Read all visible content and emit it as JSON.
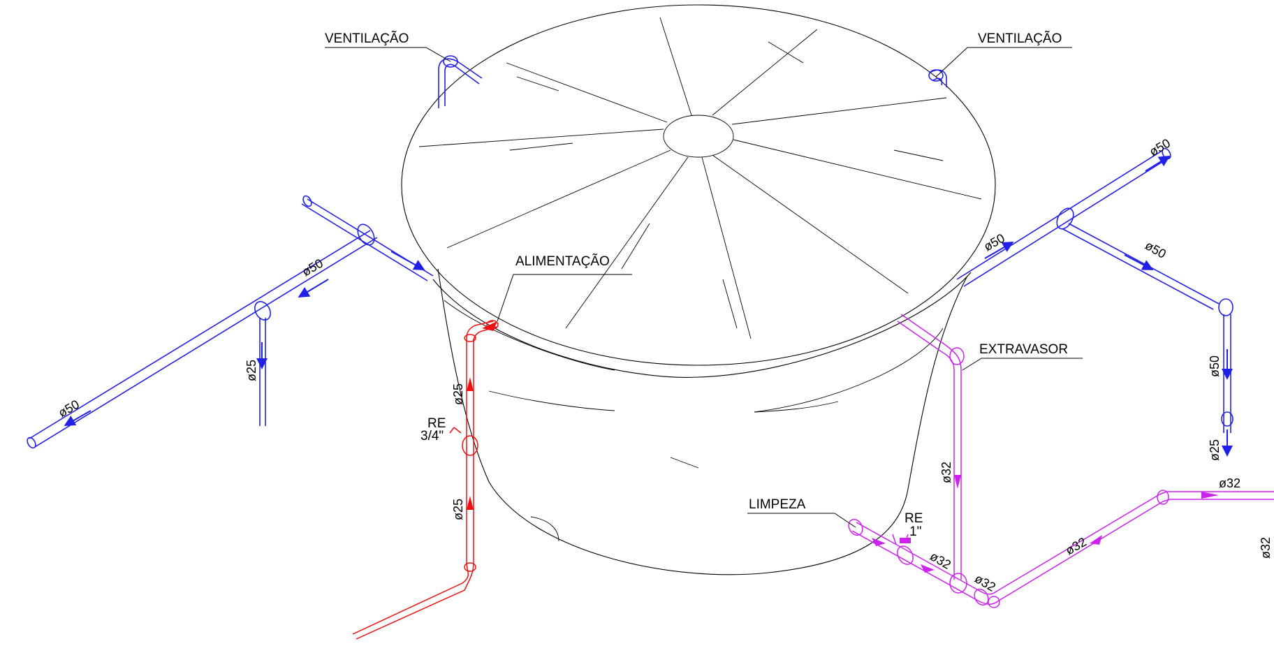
{
  "labels": {
    "ventilacao_left": "VENTILAÇÃO",
    "ventilacao_right": "VENTILAÇÃO",
    "alimentacao": "ALIMENTAÇÃO",
    "extravasor": "EXTRAVASOR",
    "limpeza": "LIMPEZA",
    "re_feed_line1": "RE",
    "re_feed_line2": "3/4\"",
    "re_clean_line1": "RE",
    "re_clean_line2": "1\""
  },
  "dimensions": {
    "left_main_upper": "ø50",
    "left_main_lower": "ø50",
    "left_drop": "ø25",
    "feed_upper": "ø25",
    "feed_lower": "ø25",
    "right_to_tee": "ø50",
    "right_to_end": "ø50",
    "right_branch": "ø50",
    "right_down": "ø50",
    "right_drop": "ø25",
    "overflow_down": "ø32",
    "clean_horizontal_a": "ø32",
    "clean_horizontal_b": "ø32",
    "clean_diagonal": "ø32",
    "clean_top": "ø32",
    "clean_far_right": "ø32"
  },
  "colors": {
    "ventilation": "#2020e8",
    "feed": "#ee1111",
    "overflow_cleaning": "#cc22ee",
    "tank": "#000000"
  }
}
